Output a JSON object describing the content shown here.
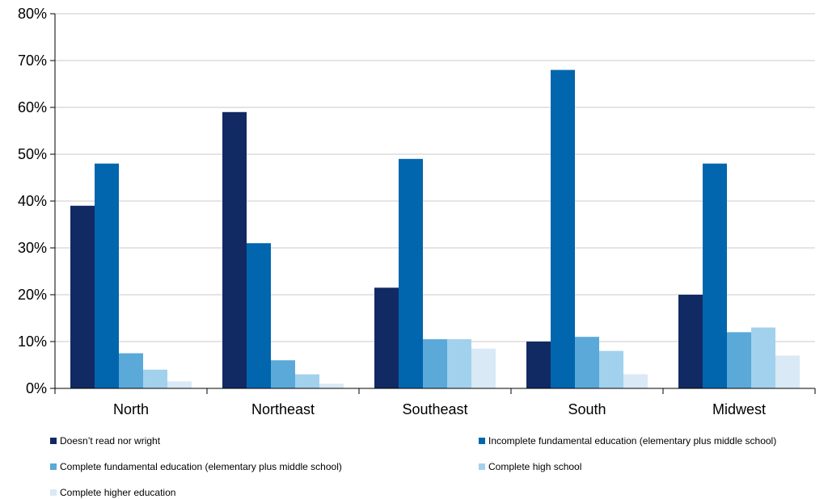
{
  "chart_data": {
    "type": "bar",
    "categories": [
      "North",
      "Northeast",
      "Southeast",
      "South",
      "Midwest"
    ],
    "series": [
      {
        "name": "Doesn’t read nor wright",
        "color": "#122a63",
        "values": [
          39,
          59,
          21.5,
          10,
          20
        ]
      },
      {
        "name": "Incomplete fundamental education (elementary plus middle school)",
        "color": "#0166ad",
        "values": [
          48,
          31,
          49,
          68,
          48
        ]
      },
      {
        "name": "Complete fundamental education (elementary plus middle school)",
        "color": "#5aa9d8",
        "values": [
          7.5,
          6,
          10.5,
          11,
          12
        ]
      },
      {
        "name": "Complete high school",
        "color": "#a2d1ee",
        "values": [
          4,
          3,
          10.5,
          8,
          13
        ]
      },
      {
        "name": "Complete higher education",
        "color": "#d9e9f5",
        "values": [
          1.5,
          1,
          8.5,
          3,
          7
        ]
      }
    ],
    "ylim": [
      0,
      80
    ],
    "yticks": [
      0,
      10,
      20,
      30,
      40,
      50,
      60,
      70,
      80
    ],
    "ytick_labels": [
      "0%",
      "10%",
      "20%",
      "30%",
      "40%",
      "50%",
      "60%",
      "70%",
      "80%"
    ],
    "grid": true,
    "legend_position": "bottom"
  }
}
